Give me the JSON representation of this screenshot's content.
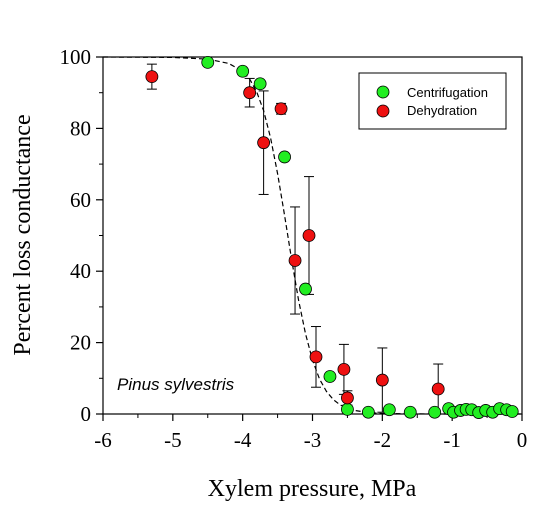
{
  "chart_data": {
    "type": "scatter",
    "xlabel": "Xylem pressure, MPa",
    "ylabel": "Percent loss conductance",
    "xlim": [
      -6,
      0
    ],
    "ylim": [
      0,
      100
    ],
    "x_ticks": [
      "-6",
      "-5",
      "-4",
      "-3",
      "-2",
      "-1",
      "0"
    ],
    "y_ticks": [
      "0",
      "20",
      "40",
      "60",
      "80",
      "100"
    ],
    "annotation": "Pinus sylvestris",
    "legend_position": "top-right",
    "fit_curve": {
      "style": "dashed",
      "color": "#000000",
      "points": [
        [
          -6.0,
          100
        ],
        [
          -5.0,
          99.9
        ],
        [
          -4.5,
          99.4
        ],
        [
          -4.2,
          98.2
        ],
        [
          -4.0,
          96.0
        ],
        [
          -3.9,
          93.8
        ],
        [
          -3.8,
          90.3
        ],
        [
          -3.7,
          85.0
        ],
        [
          -3.6,
          77.3
        ],
        [
          -3.5,
          67.3
        ],
        [
          -3.4,
          55.6
        ],
        [
          -3.3,
          43.3
        ],
        [
          -3.2,
          32.0
        ],
        [
          -3.1,
          22.5
        ],
        [
          -3.0,
          15.1
        ],
        [
          -2.9,
          9.8
        ],
        [
          -2.8,
          6.3
        ],
        [
          -2.7,
          4.0
        ],
        [
          -2.6,
          2.5
        ],
        [
          -2.4,
          1.0
        ],
        [
          -2.2,
          0.4
        ],
        [
          -2.0,
          0.15
        ],
        [
          -1.5,
          0.02
        ],
        [
          -1.0,
          0.0
        ],
        [
          -0.5,
          0.0
        ],
        [
          0.0,
          0.0
        ]
      ]
    },
    "series": [
      {
        "name": "Centrifugation",
        "color": "#22ee22",
        "points": [
          {
            "x": -4.5,
            "y": 98.5
          },
          {
            "x": -4.0,
            "y": 96
          },
          {
            "x": -3.75,
            "y": 92.5
          },
          {
            "x": -3.4,
            "y": 72
          },
          {
            "x": -3.1,
            "y": 35
          },
          {
            "x": -2.75,
            "y": 10.5
          },
          {
            "x": -2.5,
            "y": 1.3
          },
          {
            "x": -2.2,
            "y": 0.5
          },
          {
            "x": -1.9,
            "y": 1.2
          },
          {
            "x": -1.6,
            "y": 0.5
          },
          {
            "x": -1.25,
            "y": 0.5
          },
          {
            "x": -1.05,
            "y": 1.5
          },
          {
            "x": -0.98,
            "y": 0.5
          },
          {
            "x": -0.88,
            "y": 1.0
          },
          {
            "x": -0.8,
            "y": 1.3
          },
          {
            "x": -0.72,
            "y": 1.2
          },
          {
            "x": -0.62,
            "y": 0.4
          },
          {
            "x": -0.52,
            "y": 1.0
          },
          {
            "x": -0.42,
            "y": 0.5
          },
          {
            "x": -0.32,
            "y": 1.5
          },
          {
            "x": -0.22,
            "y": 1.2
          },
          {
            "x": -0.14,
            "y": 0.7
          }
        ]
      },
      {
        "name": "Dehydration",
        "color": "#ee1111",
        "points": [
          {
            "x": -5.3,
            "y": 94.5,
            "err": 3.5
          },
          {
            "x": -3.9,
            "y": 90,
            "err": 4
          },
          {
            "x": -3.7,
            "y": 76,
            "err": 14.5
          },
          {
            "x": -3.45,
            "y": 85.5,
            "err": 1.5
          },
          {
            "x": -3.25,
            "y": 43,
            "err": 15
          },
          {
            "x": -3.05,
            "y": 50,
            "err": 16.5
          },
          {
            "x": -2.95,
            "y": 16,
            "err": 8.5
          },
          {
            "x": -2.55,
            "y": 12.5,
            "err": 7
          },
          {
            "x": -2.5,
            "y": 4.5,
            "err": 2
          },
          {
            "x": -2.0,
            "y": 9.5,
            "err": 9
          },
          {
            "x": -1.2,
            "y": 7,
            "err": 7
          }
        ]
      }
    ]
  }
}
